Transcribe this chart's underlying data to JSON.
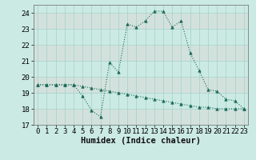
{
  "xlabel": "Humidex (Indice chaleur)",
  "ylabel": "",
  "bg_color": "#cceae4",
  "grid_color": "#aad4cc",
  "line_color": "#1a6b5a",
  "line1_x": [
    0,
    1,
    2,
    3,
    4,
    5,
    6,
    7,
    8,
    9,
    10,
    11,
    12,
    13,
    14,
    15,
    16,
    17,
    18,
    19,
    20,
    21,
    22,
    23
  ],
  "line1_y": [
    19.5,
    19.5,
    19.5,
    19.5,
    19.5,
    18.8,
    17.9,
    17.5,
    20.9,
    20.3,
    23.3,
    23.1,
    23.5,
    24.1,
    24.1,
    23.1,
    23.5,
    21.5,
    20.4,
    19.2,
    19.1,
    18.6,
    18.5,
    18.0
  ],
  "line2_x": [
    0,
    1,
    2,
    3,
    4,
    5,
    6,
    7,
    8,
    9,
    10,
    11,
    12,
    13,
    14,
    15,
    16,
    17,
    18,
    19,
    20,
    21,
    22,
    23
  ],
  "line2_y": [
    19.5,
    19.5,
    19.5,
    19.5,
    19.5,
    19.4,
    19.3,
    19.2,
    19.1,
    19.0,
    18.9,
    18.8,
    18.7,
    18.6,
    18.5,
    18.4,
    18.3,
    18.2,
    18.1,
    18.1,
    18.0,
    18.0,
    18.0,
    18.0
  ],
  "xlim": [
    -0.5,
    23.5
  ],
  "ylim": [
    17,
    24.5
  ],
  "yticks": [
    17,
    18,
    19,
    20,
    21,
    22,
    23,
    24
  ],
  "xticks": [
    0,
    1,
    2,
    3,
    4,
    5,
    6,
    7,
    8,
    9,
    10,
    11,
    12,
    13,
    14,
    15,
    16,
    17,
    18,
    19,
    20,
    21,
    22,
    23
  ],
  "tick_fontsize": 6.5,
  "xlabel_fontsize": 7.5,
  "marker_size": 2.0
}
